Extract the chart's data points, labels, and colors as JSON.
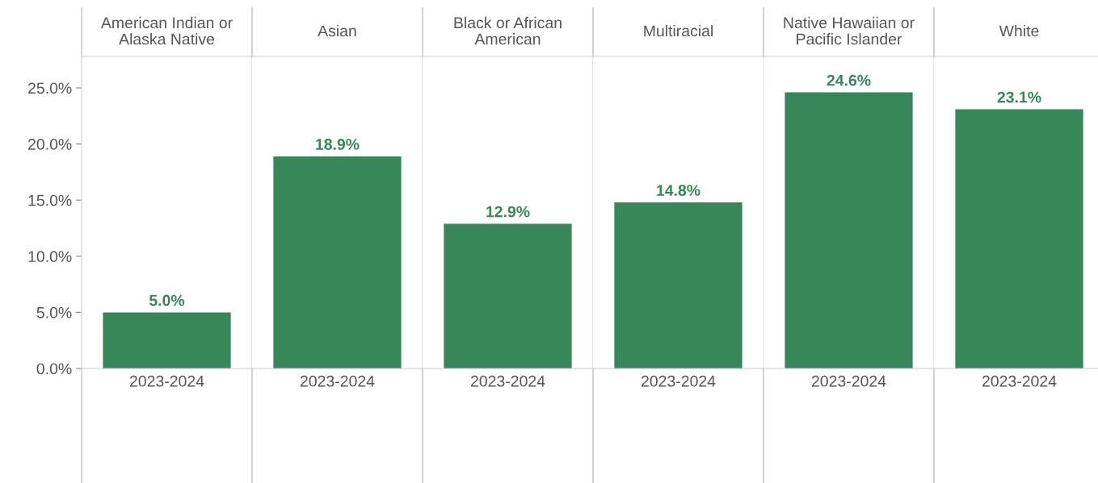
{
  "chart_data": [
    {
      "type": "bar",
      "title": "American Indian or\nAlaska Native",
      "categories": [
        "2023-2024"
      ],
      "values": [
        5.0
      ],
      "value_labels": [
        "5.0%"
      ],
      "color": "#38865a",
      "ylim": [
        0,
        27.8
      ],
      "yticks": [
        {
          "value": 0,
          "label": "0.0%"
        },
        {
          "value": 5,
          "label": "5.0%"
        },
        {
          "value": 10,
          "label": "10.0%"
        },
        {
          "value": 15,
          "label": "15.0%"
        },
        {
          "value": 20,
          "label": "20.0%"
        },
        {
          "value": 25,
          "label": "25.0%"
        }
      ]
    },
    {
      "type": "bar",
      "title": "Asian",
      "categories": [
        "2023-2024"
      ],
      "values": [
        18.9
      ],
      "value_labels": [
        "18.9%"
      ],
      "color": "#38865a",
      "ylim": [
        0,
        27.8
      ],
      "tick_labels": "x"
    },
    {
      "type": "bar",
      "title": "Black or African\nAmerican",
      "categories": [
        "2023-2024"
      ],
      "values": [
        12.9
      ],
      "value_labels": [
        "12.9%"
      ],
      "color": "#38865a",
      "ylim": [
        0,
        27.8
      ],
      "tick_labels": "x"
    },
    {
      "type": "bar",
      "title": "Multiracial",
      "categories": [
        "2023-2024"
      ],
      "values": [
        14.8
      ],
      "value_labels": [
        "14.8%"
      ],
      "color": "#38865a",
      "ylim": [
        0,
        27.8
      ],
      "tick_labels": "x"
    },
    {
      "type": "bar",
      "title": "Native Hawaiian or\nPacific Islander",
      "categories": [
        "2023-2024"
      ],
      "values": [
        24.6
      ],
      "value_labels": [
        "24.6%"
      ],
      "color": "#38865a",
      "ylim": [
        0,
        27.8
      ],
      "tick_labels": "x"
    },
    {
      "type": "bar",
      "title": "White",
      "categories": [
        "2023-2024"
      ],
      "values": [
        23.1
      ],
      "value_labels": [
        "23.1%"
      ],
      "color": "#38865a",
      "ylim": [
        0,
        27.8
      ],
      "tick_labels": "x"
    }
  ]
}
